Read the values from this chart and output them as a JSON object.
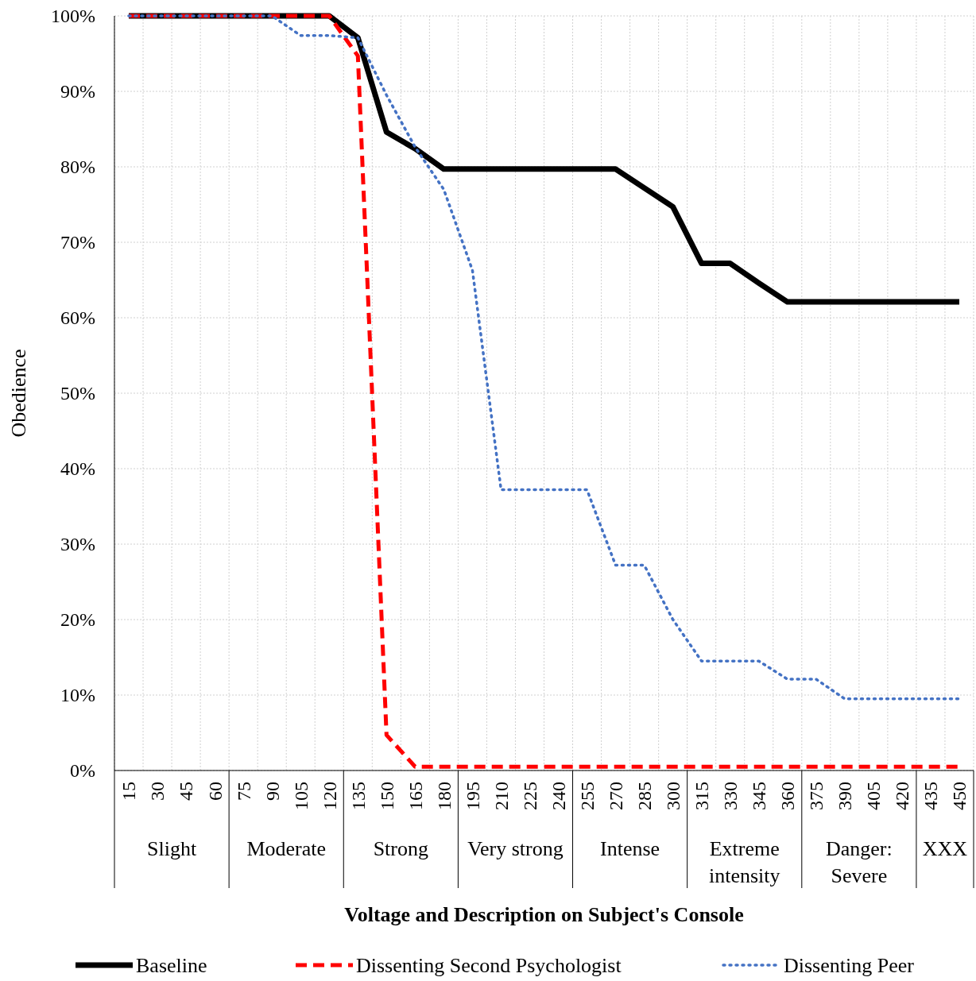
{
  "chart_data": {
    "type": "line",
    "xlabel": "Voltage and Description on Subject's Console",
    "ylabel": "Obedience",
    "categories": [
      "15",
      "30",
      "45",
      "60",
      "75",
      "90",
      "105",
      "120",
      "135",
      "150",
      "165",
      "180",
      "195",
      "210",
      "225",
      "240",
      "255",
      "270",
      "285",
      "300",
      "315",
      "330",
      "345",
      "360",
      "375",
      "390",
      "405",
      "420",
      "435",
      "450"
    ],
    "series": [
      {
        "name": "Baseline",
        "color": "#000000",
        "line_style": "solid",
        "values": [
          100,
          100,
          100,
          100,
          100,
          100,
          100,
          100,
          97.1,
          84.6,
          82.4,
          79.7,
          79.7,
          79.7,
          79.7,
          79.7,
          79.7,
          79.7,
          77.2,
          74.7,
          67.2,
          67.2,
          64.6,
          62.1,
          62.1,
          62.1,
          62.1,
          62.1,
          62.1,
          62.1
        ]
      },
      {
        "name": "Dissenting Second Psychologist",
        "color": "#ff0000",
        "line_style": "dashed",
        "values": [
          100,
          100,
          100,
          100,
          100,
          100,
          100,
          100,
          94.7,
          4.7,
          0.5,
          0.5,
          0.5,
          0.5,
          0.5,
          0.5,
          0.5,
          0.5,
          0.5,
          0.5,
          0.5,
          0.5,
          0.5,
          0.5,
          0.5,
          0.5,
          0.5,
          0.5,
          0.5,
          0.5
        ]
      },
      {
        "name": "Dissenting Peer",
        "color": "#4472c4",
        "line_style": "dotted",
        "values": [
          100,
          100,
          100,
          100,
          100,
          100,
          97.4,
          97.4,
          97.1,
          89.5,
          82.6,
          77.0,
          66.3,
          37.2,
          37.2,
          37.2,
          37.2,
          27.2,
          27.2,
          20.0,
          14.5,
          14.5,
          14.5,
          12.1,
          12.1,
          9.5,
          9.5,
          9.5,
          9.5,
          9.5
        ]
      }
    ],
    "annotations": [
      "Slight",
      "Moderate",
      "Strong",
      "Very strong",
      "Intense",
      "Extreme intensity",
      "Danger: Severe",
      "XXX"
    ],
    "ylim": [
      0,
      100
    ],
    "yticks": [
      {
        "value": 0,
        "label": "0%"
      },
      {
        "value": 10,
        "label": "10%"
      },
      {
        "value": 20,
        "label": "20%"
      },
      {
        "value": 30,
        "label": "30%"
      },
      {
        "value": 40,
        "label": "40%"
      },
      {
        "value": 50,
        "label": "50%"
      },
      {
        "value": 60,
        "label": "60%"
      },
      {
        "value": 70,
        "label": "70%"
      },
      {
        "value": 80,
        "label": "80%"
      },
      {
        "value": 90,
        "label": "90%"
      },
      {
        "value": 100,
        "label": "100%"
      }
    ],
    "grid": true,
    "legend": "bottom",
    "marker": "none"
  }
}
